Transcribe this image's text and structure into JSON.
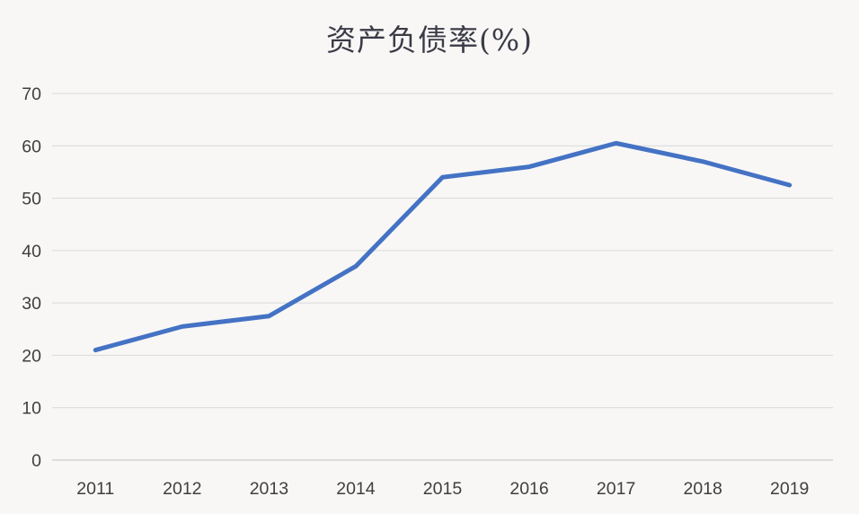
{
  "chart": {
    "title": "资产负债率(%)"
  },
  "chart_data": {
    "type": "line",
    "title": "资产负债率(%)",
    "categories": [
      "2011",
      "2012",
      "2013",
      "2014",
      "2015",
      "2016",
      "2017",
      "2018",
      "2019"
    ],
    "values": [
      21,
      25.5,
      27.5,
      37,
      54,
      56,
      60.5,
      57,
      52.5
    ],
    "series": [
      {
        "name": "资产负债率",
        "values": [
          21,
          25.5,
          27.5,
          37,
          54,
          56,
          60.5,
          57,
          52.5
        ]
      }
    ],
    "xlabel": "",
    "ylabel": "",
    "ylim": [
      0,
      70
    ],
    "yticks": [
      0,
      10,
      20,
      30,
      40,
      50,
      60,
      70
    ],
    "grid": "horizontal",
    "legend_position": "none",
    "colors": {
      "line": "#4472c4",
      "gridline": "#d9d9d9",
      "axis_line": "#c0c0c0",
      "tick_label": "#3f3f3f",
      "title": "#3b3b47",
      "background": "#f8f7f6"
    }
  }
}
